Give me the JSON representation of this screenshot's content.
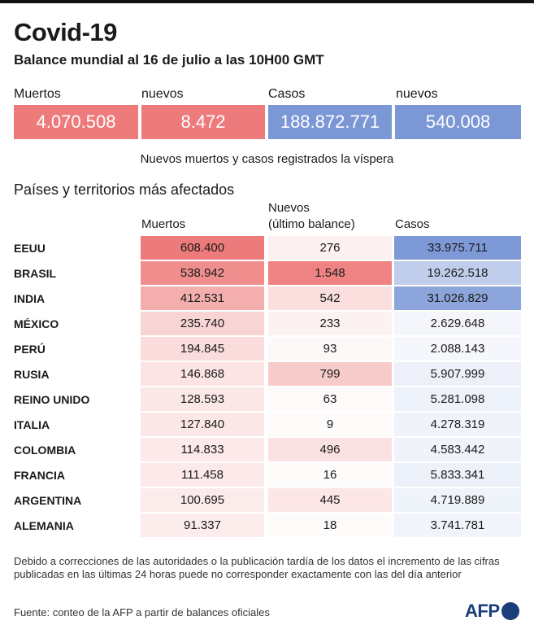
{
  "header": {
    "title": "Covid-19",
    "subtitle": "Balance mundial al 16 de julio a las 10H00 GMT"
  },
  "summary": {
    "deaths_label": "Muertos",
    "deaths_value": "4.070.508",
    "deaths_new_label": "nuevos",
    "deaths_new_value": "8.472",
    "cases_label": "Casos",
    "cases_value": "188.872.771",
    "cases_new_label": "nuevos",
    "cases_new_value": "540.008",
    "note": "Nuevos muertos y casos registrados la víspera"
  },
  "table": {
    "title": "Países y territorios más afectados",
    "col_deaths": "Muertos",
    "col_new_line1": "Nuevos",
    "col_new_line2": "(último balance)",
    "col_cases": "Casos",
    "rows": [
      {
        "country": "EEUU",
        "deaths": "608.400",
        "new": "276",
        "cases": "33.975.711"
      },
      {
        "country": "BRASIL",
        "deaths": "538.942",
        "new": "1.548",
        "cases": "19.262.518"
      },
      {
        "country": "INDIA",
        "deaths": "412.531",
        "new": "542",
        "cases": "31.026.829"
      },
      {
        "country": "MÉXICO",
        "deaths": "235.740",
        "new": "233",
        "cases": "2.629.648"
      },
      {
        "country": "PERÚ",
        "deaths": "194.845",
        "new": "93",
        "cases": "2.088.143"
      },
      {
        "country": "RUSIA",
        "deaths": "146.868",
        "new": "799",
        "cases": "5.907.999"
      },
      {
        "country": "REINO UNIDO",
        "deaths": "128.593",
        "new": "63",
        "cases": "5.281.098"
      },
      {
        "country": "ITALIA",
        "deaths": "127.840",
        "new": "9",
        "cases": "4.278.319"
      },
      {
        "country": "COLOMBIA",
        "deaths": "114.833",
        "new": "496",
        "cases": "4.583.442"
      },
      {
        "country": "FRANCIA",
        "deaths": "111.458",
        "new": "16",
        "cases": "5.833.341"
      },
      {
        "country": "ARGENTINA",
        "deaths": "100.695",
        "new": "445",
        "cases": "4.719.889"
      },
      {
        "country": "ALEMANIA",
        "deaths": "91.337",
        "new": "18",
        "cases": "3.741.781"
      }
    ]
  },
  "footnote": "Debido a correcciones de las autoridades o la publicación tardía de los datos  el incremento de las cifras publicadas en las últimas 24 horas puede no corresponder exactamente con las del día anterior",
  "source": "Fuente: conteo de la AFP a partir de balances oficiales",
  "logo_text": "AFP",
  "colors": {
    "deaths": "#ee7b7b",
    "cases": "#7b97d6",
    "logo": "#1b3d7a"
  }
}
